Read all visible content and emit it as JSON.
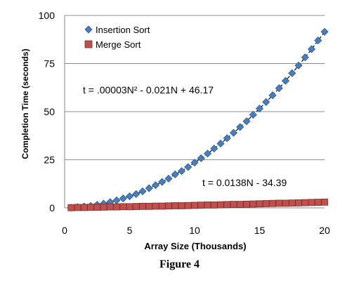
{
  "caption": "Figure 4",
  "chart_data": {
    "type": "scatter",
    "xlabel": "Array Size (Thousands)",
    "ylabel": "Completion Time (seconds)",
    "xlim": [
      0,
      20
    ],
    "ylim": [
      0,
      100
    ],
    "x_ticks": [
      "0",
      "5",
      "10",
      "15",
      "20"
    ],
    "y_ticks": [
      "0",
      "25",
      "50",
      "75",
      "100"
    ],
    "grid": "horizontal",
    "legend_position": "top-left",
    "series": [
      {
        "name": "Insertion Sort",
        "marker": "diamond",
        "color": "#4a7ebb",
        "x": [
          0.5,
          1,
          1.5,
          2,
          2.5,
          3,
          3.5,
          4,
          4.5,
          5,
          5.5,
          6,
          6.5,
          7,
          7.5,
          8,
          8.5,
          9,
          9.5,
          10,
          10.5,
          11,
          11.5,
          12,
          12.5,
          13,
          13.5,
          14,
          14.5,
          15,
          15.5,
          16,
          16.5,
          17,
          17.5,
          18,
          18.5,
          19,
          19.5,
          20
        ],
        "y": [
          0.1,
          0.4,
          0.7,
          1,
          1.6,
          2.2,
          3,
          3.9,
          4.9,
          6,
          7.2,
          8.6,
          10.2,
          11.8,
          13.5,
          15.2,
          17.4,
          19.1,
          21.2,
          23.5,
          25.8,
          28.2,
          30.8,
          33.4,
          36.2,
          39,
          42,
          45,
          48.4,
          51.6,
          55,
          58.5,
          62.2,
          66,
          70,
          74,
          78.2,
          82.5,
          87,
          91.5
        ]
      },
      {
        "name": "Merge Sort",
        "marker": "square",
        "color": "#c0504d",
        "x": [
          0.5,
          1,
          1.5,
          2,
          2.5,
          3,
          3.5,
          4,
          4.5,
          5,
          5.5,
          6,
          6.5,
          7,
          7.5,
          8,
          8.5,
          9,
          9.5,
          10,
          10.5,
          11,
          11.5,
          12,
          12.5,
          13,
          13.5,
          14,
          14.5,
          15,
          15.5,
          16,
          16.5,
          17,
          17.5,
          18,
          18.5,
          19,
          19.5,
          20
        ],
        "y": [
          0.1,
          0.2,
          0.2,
          0.3,
          0.3,
          0.4,
          0.5,
          0.5,
          0.6,
          0.6,
          0.7,
          0.8,
          0.8,
          0.9,
          0.9,
          1,
          1.1,
          1.1,
          1.2,
          1.3,
          1.4,
          1.5,
          1.5,
          1.6,
          1.7,
          1.8,
          1.8,
          1.9,
          2,
          2.1,
          2.2,
          2.3,
          2.4,
          2.4,
          2.5,
          2.6,
          2.7,
          2.8,
          2.9,
          3
        ]
      }
    ],
    "trendlines": [
      {
        "series": "Insertion Sort",
        "type": "polynomial",
        "coefficients": [
          3e-05,
          -0.021,
          46.17
        ],
        "label": "t = .00003N² - 0.021N + 46.17"
      },
      {
        "series": "Merge Sort",
        "type": "linear",
        "coefficients": [
          0.0138,
          -34.39
        ],
        "label": "t = 0.0138N - 34.39"
      }
    ]
  }
}
